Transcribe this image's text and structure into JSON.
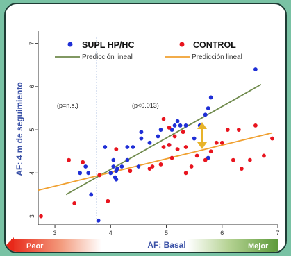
{
  "chart_data": {
    "type": "scatter",
    "xlabel": "AF: Basal",
    "ylabel": "AF: 4 m de seguimiento",
    "xlim": [
      2.7,
      7.0
    ],
    "ylim": [
      2.8,
      7.3
    ],
    "x_ticks": [
      "3",
      "4",
      "5",
      "6",
      "7"
    ],
    "y_ticks": [
      "3",
      "4",
      "5",
      "6",
      "7"
    ],
    "grid": false,
    "legend_position": "top",
    "annotations": {
      "left_p": "(p=n.s.)",
      "right_p": "(p<0.013)",
      "worse": "Peor",
      "better": "Mejor"
    },
    "colors": {
      "supl": "#1f2fd6",
      "control": "#e8141e",
      "supl_line": "#6f8a4c",
      "control_line": "#f0a030",
      "arrow": "#e8b32a",
      "divider": "#6d8fc9",
      "axis_label": "#3a51a6"
    },
    "divider_x": 3.75,
    "series": [
      {
        "name": "SUPL HP/HC",
        "trend_label": "Predicción lineal",
        "trend": [
          [
            3.2,
            3.5
          ],
          [
            6.7,
            6.05
          ]
        ],
        "points": [
          [
            3.45,
            4.0
          ],
          [
            3.6,
            4.0
          ],
          [
            3.55,
            4.15
          ],
          [
            3.65,
            3.5
          ],
          [
            3.78,
            2.9
          ],
          [
            3.9,
            4.6
          ],
          [
            4.0,
            4.0
          ],
          [
            4.05,
            4.15
          ],
          [
            4.08,
            3.9
          ],
          [
            4.1,
            4.05
          ],
          [
            4.1,
            3.85
          ],
          [
            4.12,
            4.1
          ],
          [
            4.2,
            4.15
          ],
          [
            4.3,
            4.3
          ],
          [
            4.3,
            4.6
          ],
          [
            4.4,
            4.6
          ],
          [
            4.5,
            4.15
          ],
          [
            4.55,
            4.8
          ],
          [
            4.55,
            4.95
          ],
          [
            4.7,
            4.7
          ],
          [
            4.85,
            4.85
          ],
          [
            4.9,
            5.0
          ],
          [
            5.05,
            4.65
          ],
          [
            5.1,
            5.0
          ],
          [
            5.15,
            5.1
          ],
          [
            5.2,
            5.2
          ],
          [
            5.25,
            5.1
          ],
          [
            5.35,
            5.1
          ],
          [
            5.5,
            4.8
          ],
          [
            5.6,
            5.1
          ],
          [
            5.7,
            5.35
          ],
          [
            5.75,
            5.5
          ],
          [
            5.8,
            5.75
          ],
          [
            5.75,
            4.35
          ],
          [
            6.6,
            6.4
          ],
          [
            4.05,
            4.3
          ]
        ]
      },
      {
        "name": "CONTROL",
        "trend_label": "Predicción lineal",
        "trend": [
          [
            2.7,
            3.6
          ],
          [
            6.9,
            4.93
          ]
        ],
        "points": [
          [
            2.75,
            3.0
          ],
          [
            3.25,
            4.3
          ],
          [
            3.35,
            3.3
          ],
          [
            3.5,
            4.25
          ],
          [
            3.8,
            3.95
          ],
          [
            3.95,
            3.35
          ],
          [
            4.1,
            4.55
          ],
          [
            4.35,
            4.05
          ],
          [
            4.7,
            4.1
          ],
          [
            4.75,
            4.15
          ],
          [
            4.9,
            4.2
          ],
          [
            4.95,
            4.6
          ],
          [
            5.05,
            4.65
          ],
          [
            5.1,
            4.35
          ],
          [
            5.15,
            4.85
          ],
          [
            5.2,
            4.55
          ],
          [
            5.3,
            4.95
          ],
          [
            5.35,
            4.0
          ],
          [
            5.45,
            4.15
          ],
          [
            5.55,
            4.4
          ],
          [
            5.7,
            4.3
          ],
          [
            5.8,
            4.5
          ],
          [
            5.9,
            4.7
          ],
          [
            6.0,
            4.7
          ],
          [
            6.1,
            5.0
          ],
          [
            6.2,
            4.3
          ],
          [
            6.3,
            5.0
          ],
          [
            6.35,
            4.1
          ],
          [
            6.5,
            4.3
          ],
          [
            6.6,
            5.1
          ],
          [
            6.75,
            4.4
          ],
          [
            6.9,
            4.8
          ],
          [
            4.95,
            5.25
          ],
          [
            5.35,
            4.6
          ],
          [
            5.05,
            5.05
          ]
        ]
      }
    ]
  }
}
